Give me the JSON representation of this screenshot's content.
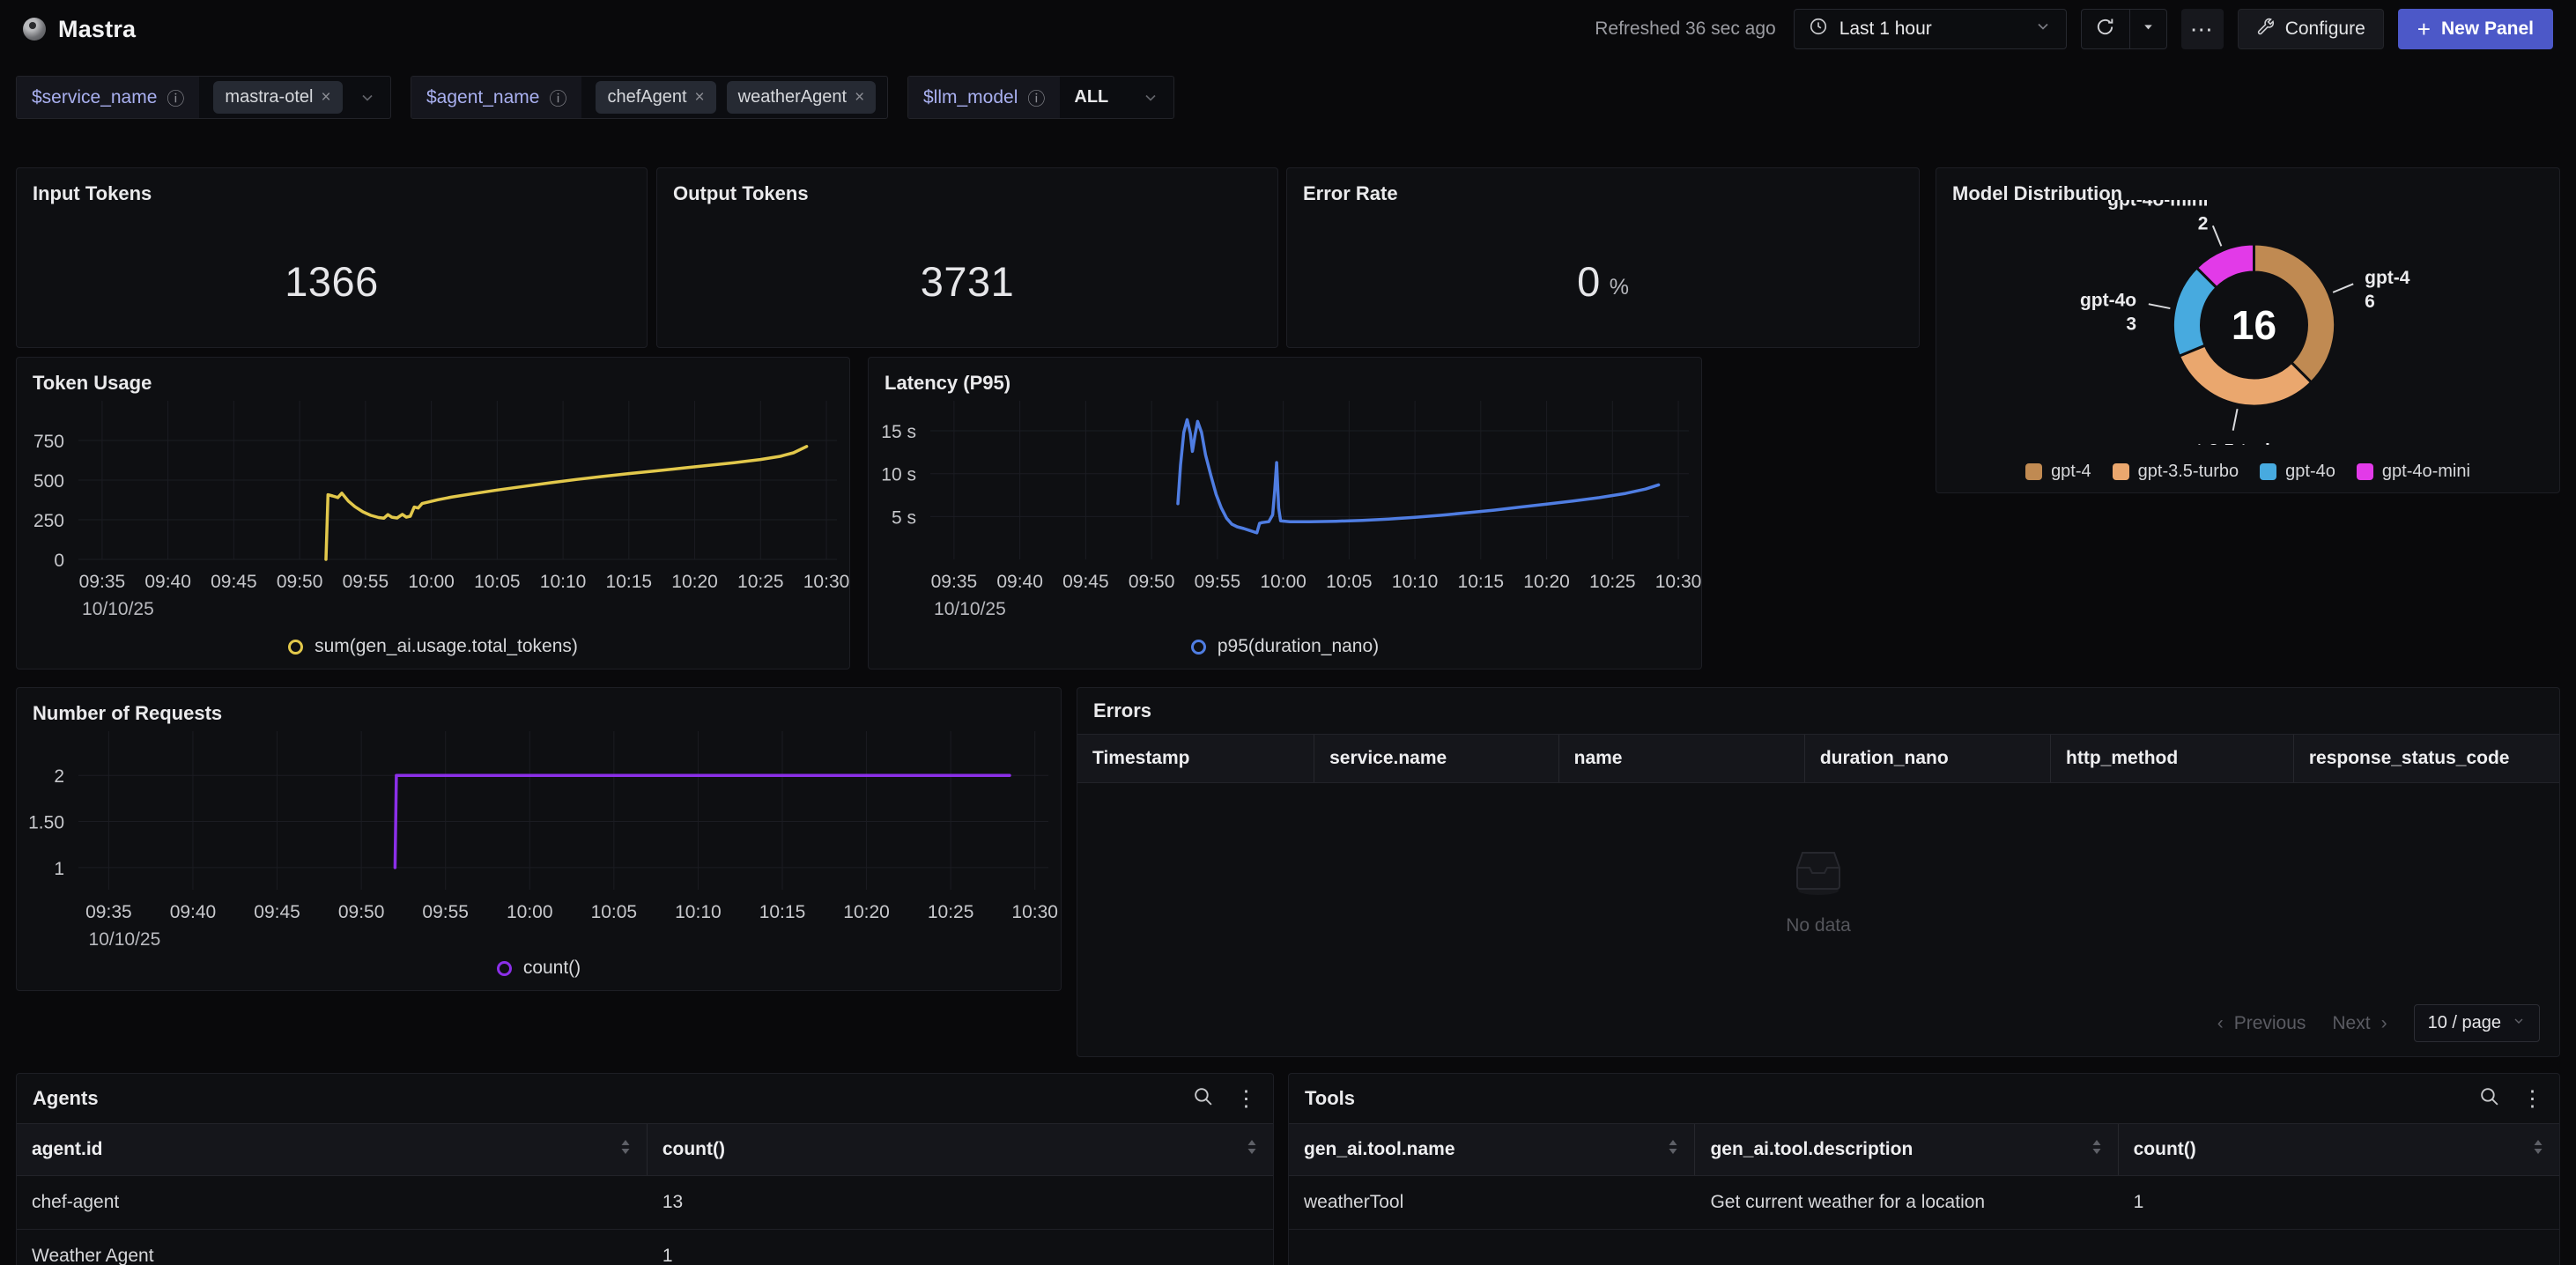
{
  "header": {
    "app_title": "Mastra",
    "refreshed_text": "Refreshed 36 sec ago",
    "time_range_label": "Last 1 hour",
    "more_options_label": "⋯",
    "configure_label": "Configure",
    "plus_glyph": "+",
    "new_panel_label": "New Panel"
  },
  "filters": [
    {
      "name": "$service_name",
      "info_glyph": "ⓘ",
      "chips": [
        "mastra-otel"
      ],
      "remove_glyph": "×"
    },
    {
      "name": "$agent_name",
      "info_glyph": "ⓘ",
      "chips": [
        "chefAgent",
        "weatherAgent"
      ],
      "remove_glyph": "×"
    },
    {
      "name": "$llm_model",
      "info_glyph": "ⓘ",
      "value": "ALL"
    }
  ],
  "stats": [
    {
      "title": "Input Tokens",
      "value": "1366"
    },
    {
      "title": "Output Tokens",
      "value": "3731"
    },
    {
      "title": "Error Rate",
      "value": "0",
      "unit": "%"
    }
  ],
  "chart_data": [
    {
      "id": "token_usage",
      "type": "line",
      "title": "Token Usage",
      "legend": "sum(gen_ai.usage.total_tokens)",
      "color": "#e2c84b",
      "xlim": [
        -1.8,
        55.8
      ],
      "ylim": [
        0,
        1000
      ],
      "x_ticks": [
        {
          "t": 0,
          "label": "09:35"
        },
        {
          "t": 5,
          "label": "09:40"
        },
        {
          "t": 10,
          "label": "09:45"
        },
        {
          "t": 15,
          "label": "09:50"
        },
        {
          "t": 20,
          "label": "09:55"
        },
        {
          "t": 25,
          "label": "10:00"
        },
        {
          "t": 30,
          "label": "10:05"
        },
        {
          "t": 35,
          "label": "10:10"
        },
        {
          "t": 40,
          "label": "10:15"
        },
        {
          "t": 45,
          "label": "10:20"
        },
        {
          "t": 50,
          "label": "10:25"
        },
        {
          "t": 55,
          "label": "10:30"
        }
      ],
      "x_sub_label": "10/10/25",
      "y_ticks": [
        {
          "v": 0,
          "label": "0"
        },
        {
          "v": 250,
          "label": "250"
        },
        {
          "v": 500,
          "label": "500"
        },
        {
          "v": 750,
          "label": "750"
        }
      ],
      "points": [
        [
          17,
          0
        ],
        [
          17.15,
          408
        ],
        [
          17.5,
          400
        ],
        [
          17.9,
          390
        ],
        [
          18.2,
          418
        ],
        [
          18.7,
          368
        ],
        [
          19.2,
          332
        ],
        [
          19.8,
          300
        ],
        [
          20.4,
          278
        ],
        [
          21,
          264
        ],
        [
          21.4,
          260
        ],
        [
          21.7,
          282
        ],
        [
          22,
          266
        ],
        [
          22.4,
          261
        ],
        [
          22.8,
          284
        ],
        [
          23.1,
          266
        ],
        [
          23.4,
          272
        ],
        [
          23.7,
          330
        ],
        [
          24,
          324
        ],
        [
          24.3,
          352
        ],
        [
          24.8,
          362
        ],
        [
          25.5,
          376
        ],
        [
          26.5,
          392
        ],
        [
          28,
          412
        ],
        [
          30,
          437
        ],
        [
          32,
          460
        ],
        [
          34,
          483
        ],
        [
          36,
          504
        ],
        [
          38,
          523
        ],
        [
          40,
          541
        ],
        [
          42,
          558
        ],
        [
          44,
          575
        ],
        [
          46,
          592
        ],
        [
          48,
          610
        ],
        [
          50,
          630
        ],
        [
          51.5,
          650
        ],
        [
          52.5,
          672
        ],
        [
          53.5,
          712
        ]
      ]
    },
    {
      "id": "latency_p95",
      "type": "line",
      "title": "Latency (P95)",
      "legend": "p95(duration_nano)",
      "color": "#4f7de2",
      "xlim": [
        -1.8,
        55.8
      ],
      "ylim": [
        0,
        18.5
      ],
      "x_ticks": [
        {
          "t": 0,
          "label": "09:35"
        },
        {
          "t": 5,
          "label": "09:40"
        },
        {
          "t": 10,
          "label": "09:45"
        },
        {
          "t": 15,
          "label": "09:50"
        },
        {
          "t": 20,
          "label": "09:55"
        },
        {
          "t": 25,
          "label": "10:00"
        },
        {
          "t": 30,
          "label": "10:05"
        },
        {
          "t": 35,
          "label": "10:10"
        },
        {
          "t": 40,
          "label": "10:15"
        },
        {
          "t": 45,
          "label": "10:20"
        },
        {
          "t": 50,
          "label": "10:25"
        },
        {
          "t": 55,
          "label": "10:30"
        }
      ],
      "x_sub_label": "10/10/25",
      "y_ticks": [
        {
          "v": 5,
          "label": "5 s"
        },
        {
          "v": 10,
          "label": "10 s"
        },
        {
          "v": 15,
          "label": "15 s"
        }
      ],
      "points": [
        [
          17,
          6.5
        ],
        [
          17.2,
          11
        ],
        [
          17.45,
          14.8
        ],
        [
          17.7,
          16.3
        ],
        [
          17.95,
          14.7
        ],
        [
          18.1,
          12.6
        ],
        [
          18.3,
          14.5
        ],
        [
          18.5,
          16.1
        ],
        [
          18.8,
          14.8
        ],
        [
          19.1,
          12.2
        ],
        [
          19.5,
          9.8
        ],
        [
          19.9,
          7.6
        ],
        [
          20.3,
          6
        ],
        [
          20.7,
          4.8
        ],
        [
          21.1,
          4.1
        ],
        [
          21.5,
          3.8
        ],
        [
          22,
          3.6
        ],
        [
          22.4,
          3.4
        ],
        [
          22.8,
          3.2
        ],
        [
          23,
          3.1
        ],
        [
          23.2,
          4.2
        ],
        [
          23.4,
          4.3
        ],
        [
          23.9,
          4.4
        ],
        [
          24.2,
          5.2
        ],
        [
          24.35,
          8
        ],
        [
          24.5,
          11.3
        ],
        [
          24.65,
          6
        ],
        [
          24.8,
          4.5
        ],
        [
          25.5,
          4.4
        ],
        [
          27,
          4.4
        ],
        [
          29,
          4.45
        ],
        [
          31,
          4.55
        ],
        [
          33,
          4.7
        ],
        [
          35,
          4.9
        ],
        [
          37,
          5.15
        ],
        [
          39,
          5.45
        ],
        [
          41,
          5.75
        ],
        [
          43,
          6.1
        ],
        [
          45,
          6.45
        ],
        [
          47,
          6.8
        ],
        [
          49,
          7.2
        ],
        [
          51,
          7.7
        ],
        [
          52.5,
          8.2
        ],
        [
          53.5,
          8.7
        ]
      ]
    },
    {
      "id": "number_of_requests",
      "type": "line",
      "title": "Number of Requests",
      "legend": "count()",
      "color": "#8b2fe8",
      "xlim": [
        -1.8,
        55.8
      ],
      "ylim": [
        0.76,
        2.48
      ],
      "x_ticks": [
        {
          "t": 0,
          "label": "09:35"
        },
        {
          "t": 5,
          "label": "09:40"
        },
        {
          "t": 10,
          "label": "09:45"
        },
        {
          "t": 15,
          "label": "09:50"
        },
        {
          "t": 20,
          "label": "09:55"
        },
        {
          "t": 25,
          "label": "10:00"
        },
        {
          "t": 30,
          "label": "10:05"
        },
        {
          "t": 35,
          "label": "10:10"
        },
        {
          "t": 40,
          "label": "10:15"
        },
        {
          "t": 45,
          "label": "10:20"
        },
        {
          "t": 50,
          "label": "10:25"
        },
        {
          "t": 55,
          "label": "10:30"
        }
      ],
      "x_sub_label": "10/10/25",
      "y_ticks": [
        {
          "v": 1,
          "label": "1"
        },
        {
          "v": 1.5,
          "label": "1.50"
        },
        {
          "v": 2,
          "label": "2"
        }
      ],
      "points": [
        [
          17,
          1
        ],
        [
          17.08,
          2
        ],
        [
          53.5,
          2
        ]
      ]
    },
    {
      "id": "model_distribution",
      "type": "donut",
      "title": "Model Distribution",
      "center_label": "16",
      "slices": [
        {
          "label": "gpt-4",
          "value": 6,
          "color": "#c08a52"
        },
        {
          "label": "gpt-3.5-turbo",
          "value": 5,
          "color": "#eaa76e"
        },
        {
          "label": "gpt-4o",
          "value": 3,
          "color": "#47aadf"
        },
        {
          "label": "gpt-4o-mini",
          "value": 2,
          "color": "#e23ae8"
        }
      ]
    }
  ],
  "errors_table": {
    "title": "Errors",
    "columns": [
      "Timestamp",
      "service.name",
      "name",
      "duration_nano",
      "http_method",
      "response_status_code"
    ],
    "empty_text": "No data",
    "pagination": {
      "prev_glyph": "‹",
      "prev_label": "Previous",
      "next_label": "Next",
      "next_glyph": "›",
      "page_size_label": "10 / page"
    }
  },
  "agents_table": {
    "title": "Agents",
    "columns": [
      "agent.id",
      "count()"
    ],
    "rows": [
      [
        "chef-agent",
        "13"
      ],
      [
        "Weather Agent",
        "1"
      ]
    ]
  },
  "tools_table": {
    "title": "Tools",
    "columns": [
      "gen_ai.tool.name",
      "gen_ai.tool.description",
      "count()"
    ],
    "rows": [
      [
        "weatherTool",
        "Get current weather for a location",
        "1"
      ]
    ]
  },
  "colors": {
    "accent": "#4c58c8",
    "token_line": "#e2c84b",
    "latency_line": "#4f7de2",
    "requests_line": "#8b2fe8"
  }
}
